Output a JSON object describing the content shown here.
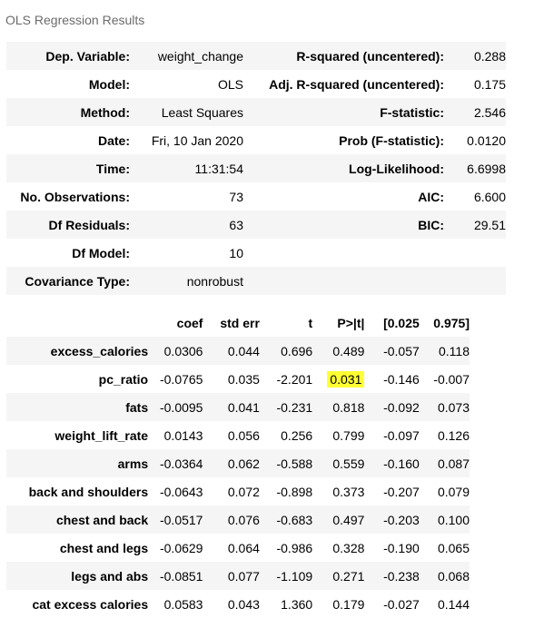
{
  "title": "OLS Regression Results",
  "summary": [
    [
      "Dep. Variable:",
      "weight_change",
      "R-squared (uncentered):",
      "0.288"
    ],
    [
      "Model:",
      "OLS",
      "Adj. R-squared (uncentered):",
      "0.175"
    ],
    [
      "Method:",
      "Least Squares",
      "F-statistic:",
      "2.546"
    ],
    [
      "Date:",
      "Fri, 10 Jan 2020",
      "Prob (F-statistic):",
      "0.0120"
    ],
    [
      "Time:",
      "11:31:54",
      "Log-Likelihood:",
      "6.6998"
    ],
    [
      "No. Observations:",
      "73",
      "AIC:",
      "6.600"
    ],
    [
      "Df Residuals:",
      "63",
      "BIC:",
      "29.51"
    ],
    [
      "Df Model:",
      "10",
      "",
      ""
    ],
    [
      "Covariance Type:",
      "nonrobust",
      "",
      ""
    ]
  ],
  "coef_headers": [
    "",
    "coef",
    "std err",
    "t",
    "P>|t|",
    "[0.025",
    "0.975]"
  ],
  "coef_rows": [
    [
      "excess_calories",
      "0.0306",
      "0.044",
      "0.696",
      "0.489",
      "-0.057",
      "0.118"
    ],
    [
      "pc_ratio",
      "-0.0765",
      "0.035",
      "-2.201",
      "0.031",
      "-0.146",
      "-0.007"
    ],
    [
      "fats",
      "-0.0095",
      "0.041",
      "-0.231",
      "0.818",
      "-0.092",
      "0.073"
    ],
    [
      "weight_lift_rate",
      "0.0143",
      "0.056",
      "0.256",
      "0.799",
      "-0.097",
      "0.126"
    ],
    [
      "arms",
      "-0.0364",
      "0.062",
      "-0.588",
      "0.559",
      "-0.160",
      "0.087"
    ],
    [
      "back and shoulders",
      "-0.0643",
      "0.072",
      "-0.898",
      "0.373",
      "-0.207",
      "0.079"
    ],
    [
      "chest and back",
      "-0.0517",
      "0.076",
      "-0.683",
      "0.497",
      "-0.203",
      "0.100"
    ],
    [
      "chest and legs",
      "-0.0629",
      "0.064",
      "-0.986",
      "0.328",
      "-0.190",
      "0.065"
    ],
    [
      "legs and abs",
      "-0.0851",
      "0.077",
      "-1.109",
      "0.271",
      "-0.238",
      "0.068"
    ],
    [
      "cat excess calories",
      "0.0583",
      "0.043",
      "1.360",
      "0.179",
      "-0.027",
      "0.144"
    ]
  ],
  "highlight_color": "#ffff33"
}
